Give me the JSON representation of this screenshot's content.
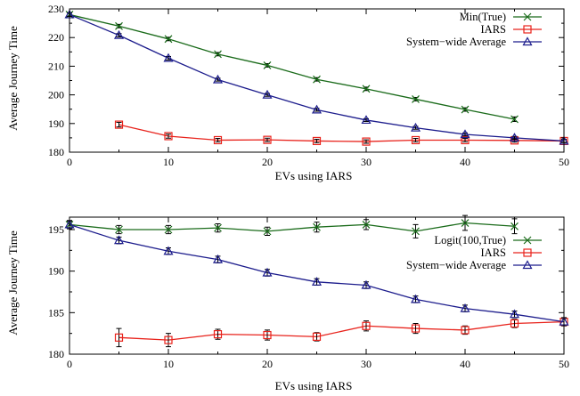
{
  "chart_data": [
    {
      "type": "line",
      "xlabel": "EVs using IARS",
      "ylabel": "Average Journey Time",
      "xlim": [
        0,
        50
      ],
      "ylim": [
        180,
        230
      ],
      "xticks": [
        0,
        10,
        20,
        30,
        40,
        50
      ],
      "yticks": [
        180,
        190,
        200,
        210,
        220,
        230
      ],
      "grid": false,
      "legend": "top-right",
      "series": [
        {
          "name": "Min(True)",
          "marker": "x",
          "color": "#1a6b1a",
          "x": [
            0,
            5,
            10,
            15,
            20,
            25,
            30,
            35,
            40,
            45
          ],
          "y": [
            228,
            224,
            219.5,
            214.2,
            210.3,
            205.4,
            202.1,
            198.5,
            194.9,
            191.5
          ],
          "err": [
            0.6,
            0.6,
            0.6,
            0.6,
            0.6,
            0.6,
            0.6,
            0.6,
            0.6,
            0.8
          ]
        },
        {
          "name": "IARS",
          "marker": "square",
          "color": "#e8231c",
          "x": [
            5,
            10,
            15,
            20,
            25,
            30,
            35,
            40,
            45,
            50
          ],
          "y": [
            189.6,
            185.6,
            184.2,
            184.3,
            183.9,
            183.7,
            184.2,
            184.2,
            184.1,
            183.9
          ],
          "err": [
            0.8,
            0.7,
            0.6,
            0.6,
            0.6,
            0.6,
            0.6,
            0.6,
            0.6,
            0.6
          ]
        },
        {
          "name": "System−wide Average",
          "marker": "triangle",
          "color": "#1c1c8c",
          "x": [
            0,
            5,
            10,
            15,
            20,
            25,
            30,
            35,
            40,
            45,
            50
          ],
          "y": [
            228,
            220.8,
            212.8,
            205.3,
            200,
            194.8,
            191.2,
            188.5,
            186.2,
            185,
            183.9
          ],
          "err": [
            0.6,
            0.6,
            0.6,
            0.5,
            0.5,
            0.5,
            0.5,
            0.5,
            0.5,
            0.5,
            0.5
          ]
        }
      ]
    },
    {
      "type": "line",
      "xlabel": "EVs using IARS",
      "ylabel": "Average Journey Time",
      "xlim": [
        0,
        50
      ],
      "ylim": [
        180,
        196.5
      ],
      "xticks": [
        0,
        10,
        20,
        30,
        40,
        50
      ],
      "yticks": [
        180,
        185,
        190,
        195
      ],
      "grid": false,
      "legend": "right",
      "series": [
        {
          "name": "Logit(100,True)",
          "marker": "x",
          "color": "#1a6b1a",
          "x": [
            0,
            5,
            10,
            15,
            20,
            25,
            30,
            35,
            40,
            45
          ],
          "y": [
            195.6,
            195,
            195,
            195.2,
            194.8,
            195.3,
            195.6,
            194.8,
            195.8,
            195.4
          ],
          "err": [
            0.5,
            0.5,
            0.5,
            0.5,
            0.5,
            0.6,
            0.6,
            0.8,
            0.9,
            0.9
          ]
        },
        {
          "name": "IARS",
          "marker": "square",
          "color": "#e8231c",
          "x": [
            5,
            10,
            15,
            20,
            25,
            30,
            35,
            40,
            45,
            50
          ],
          "y": [
            182,
            181.7,
            182.4,
            182.3,
            182.1,
            183.4,
            183.1,
            182.9,
            183.7,
            183.9
          ],
          "err": [
            1.1,
            0.8,
            0.6,
            0.6,
            0.5,
            0.6,
            0.6,
            0.5,
            0.5,
            0.5
          ]
        },
        {
          "name": "System−wide Average",
          "marker": "triangle",
          "color": "#1c1c8c",
          "x": [
            0,
            5,
            10,
            15,
            20,
            25,
            30,
            35,
            40,
            45,
            50
          ],
          "y": [
            195.6,
            193.7,
            192.4,
            191.4,
            189.8,
            188.7,
            188.3,
            186.6,
            185.5,
            184.8,
            183.9
          ],
          "err": [
            0.4,
            0.4,
            0.4,
            0.4,
            0.4,
            0.4,
            0.4,
            0.4,
            0.4,
            0.4,
            0.4
          ]
        }
      ]
    }
  ]
}
